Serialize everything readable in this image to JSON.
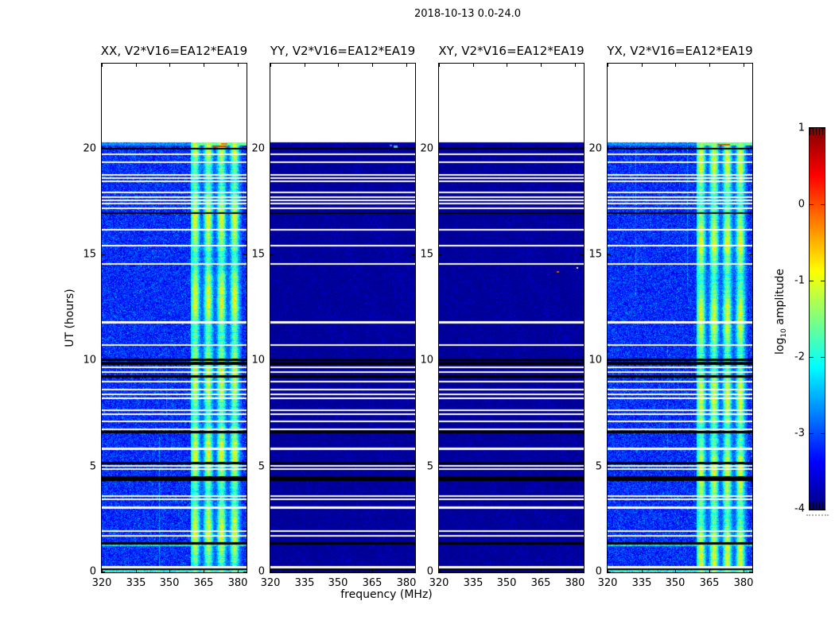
{
  "figure": {
    "title": "2018-10-13 0.0-24.0"
  },
  "chart_data": {
    "type": "heatmap",
    "title": "2018-10-13 0.0-24.0",
    "xlabel": "frequency (MHz)",
    "ylabel": "UT (hours)",
    "xlim": [
      320,
      384
    ],
    "ylim": [
      0,
      24
    ],
    "xticks": [
      320,
      335,
      350,
      365,
      380
    ],
    "yticks": [
      0,
      5,
      10,
      15,
      20
    ],
    "data_tmax": 20.3,
    "grid": false,
    "colormap": "jet",
    "band": {
      "f0": 359.4,
      "f1": 381.9
    },
    "colorbar": {
      "label_prefix": "log",
      "label_sub": "10",
      "label_suffix": " amplitude",
      "ticks": [
        1,
        0,
        -1,
        -2,
        -3,
        -4
      ],
      "vmin": -4,
      "vmax": 1
    },
    "panels": [
      {
        "title": "XX, V2*V16=EA12*EA19",
        "kind": "bright",
        "seed": 11,
        "cols": [
          {
            "x": 72,
            "t0": 0.3,
            "t1": 6.4,
            "b": 0.5
          },
          {
            "x": 81,
            "t0": 6.5,
            "t1": 10.6,
            "b": 0.35
          }
        ],
        "specks": [
          {
            "x": 139,
            "y": 103,
            "w": 18,
            "h": 2,
            "c": "#d04008"
          },
          {
            "x": 150,
            "y": 100,
            "w": 8,
            "h": 2,
            "c": "#e07818"
          }
        ]
      },
      {
        "title": "YY, V2*V16=EA12*EA19",
        "kind": "dark",
        "seed": 22,
        "specks": [
          {
            "x": 155,
            "y": 103,
            "w": 5,
            "h": 3,
            "c": "#38c8d8"
          },
          {
            "x": 150,
            "y": 102,
            "w": 3,
            "h": 2,
            "c": "#2080e0"
          }
        ]
      },
      {
        "title": "XY, V2*V16=EA12*EA19",
        "kind": "dark",
        "seed": 33,
        "specks": [
          {
            "x": 173,
            "y": 256,
            "w": 2,
            "h": 2,
            "c": "#e8eef8"
          },
          {
            "x": 148,
            "y": 261,
            "w": 3,
            "h": 2,
            "c": "#c86010"
          }
        ]
      },
      {
        "title": "YX, V2*V16=EA12*EA19",
        "kind": "bright",
        "seed": 44,
        "cols": [
          {
            "x": 35,
            "t0": 13.0,
            "t1": 20.3,
            "b": 0.4
          },
          {
            "x": 100,
            "t0": 13.2,
            "t1": 20.3,
            "b": 0.45
          },
          {
            "x": 75,
            "t0": 4.0,
            "t1": 11.0,
            "b": 0.3
          }
        ],
        "specks": [
          {
            "x": 138,
            "y": 101,
            "w": 16,
            "h": 2,
            "c": "#d85008"
          }
        ]
      }
    ],
    "white_lines": [
      {
        "t": 19.75,
        "w": 2
      },
      {
        "t": 19.4,
        "w": 2
      },
      {
        "t": 18.8,
        "w": 2
      },
      {
        "t": 18.65,
        "w": 2
      },
      {
        "t": 18.5,
        "w": 2
      },
      {
        "t": 17.95,
        "w": 2
      },
      {
        "t": 17.75,
        "w": 2
      },
      {
        "t": 17.6,
        "w": 2
      },
      {
        "t": 17.45,
        "w": 2
      },
      {
        "t": 17.2,
        "w": 2
      },
      {
        "t": 16.2,
        "w": 2
      },
      {
        "t": 15.45,
        "w": 2
      },
      {
        "t": 14.6,
        "w": 2
      },
      {
        "t": 11.85,
        "w": 3
      },
      {
        "t": 10.75,
        "w": 2
      },
      {
        "t": 9.7,
        "w": 2
      },
      {
        "t": 9.5,
        "w": 2
      },
      {
        "t": 9.05,
        "w": 2
      },
      {
        "t": 8.65,
        "w": 2
      },
      {
        "t": 8.45,
        "w": 2
      },
      {
        "t": 8.25,
        "w": 2
      },
      {
        "t": 7.7,
        "w": 2
      },
      {
        "t": 7.5,
        "w": 2
      },
      {
        "t": 7.15,
        "w": 2
      },
      {
        "t": 6.8,
        "w": 2
      },
      {
        "t": 5.9,
        "w": 3
      },
      {
        "t": 5.05,
        "w": 2
      },
      {
        "t": 4.93,
        "w": 2
      },
      {
        "t": 3.65,
        "w": 2
      },
      {
        "t": 3.5,
        "w": 2
      },
      {
        "t": 3.12,
        "w": 3
      },
      {
        "t": 2.0,
        "w": 2
      },
      {
        "t": 1.75,
        "w": 2
      },
      {
        "t": 0.3,
        "w": 3
      }
    ],
    "black_lines": [
      {
        "t": 20.02,
        "w": 2
      },
      {
        "t": 17.0,
        "w": 2
      },
      {
        "t": 10.1,
        "w": 3
      },
      {
        "t": 9.92,
        "w": 4
      },
      {
        "t": 9.3,
        "w": 3
      },
      {
        "t": 6.68,
        "w": 3
      },
      {
        "t": 5.2,
        "w": 3
      },
      {
        "t": 4.52,
        "w": 5
      },
      {
        "t": 4.38,
        "w": 2
      },
      {
        "t": 1.42,
        "w": 3
      },
      {
        "t": 0.18,
        "w": 2
      }
    ]
  }
}
